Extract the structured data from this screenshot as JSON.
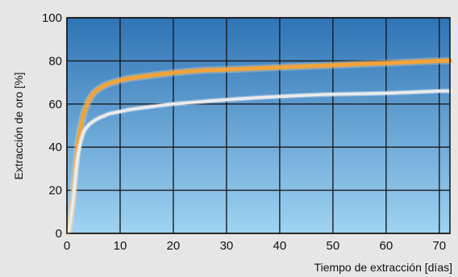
{
  "chart_data": {
    "type": "line",
    "title": "",
    "xlabel": "Tiempo de extracción [días]",
    "ylabel": "Extracción de oro [%]",
    "xlim": [
      0,
      72
    ],
    "ylim": [
      0,
      100
    ],
    "xticks": [
      0,
      10,
      20,
      30,
      40,
      50,
      60,
      70
    ],
    "yticks": [
      0,
      20,
      40,
      60,
      80,
      100
    ],
    "grid": true,
    "legend": "none",
    "colors": {
      "background": "#e6e6e6",
      "plot_top": "#2f74b6",
      "plot_bottom": "#9fd3f2",
      "grid": "#1a1a1a",
      "series_orange": "#f2a33a",
      "series_white": "#ececec"
    },
    "series": [
      {
        "color": "#f2a33a",
        "x": [
          0.3,
          1,
          2,
          3,
          4,
          5,
          6,
          7,
          8,
          10,
          12,
          15,
          20,
          25,
          30,
          40,
          50,
          60,
          70,
          72
        ],
        "y": [
          0,
          13,
          40,
          54,
          61,
          65,
          67,
          68.5,
          69.5,
          71,
          72,
          73,
          74.5,
          75.5,
          76,
          77,
          78,
          79,
          80,
          80
        ]
      },
      {
        "color": "#ececec",
        "x": [
          0.3,
          1,
          2,
          3,
          4,
          5,
          6,
          7,
          8,
          10,
          12,
          15,
          20,
          25,
          30,
          40,
          50,
          60,
          70,
          72
        ],
        "y": [
          0,
          12,
          35,
          46,
          50,
          52,
          53.5,
          54.5,
          55.5,
          56.5,
          57.5,
          58.5,
          60,
          61,
          62,
          63.5,
          64.5,
          65,
          66,
          66
        ]
      }
    ]
  }
}
